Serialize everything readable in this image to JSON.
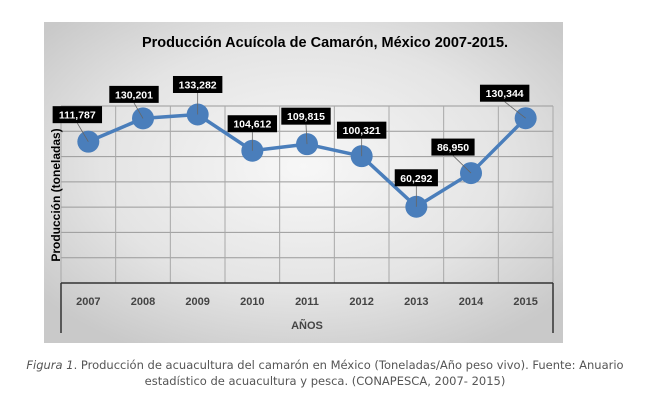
{
  "chart_data": {
    "type": "line",
    "title": "Producción Acuícola de Camarón, México 2007-2015.",
    "xlabel": "AÑOS",
    "ylabel": "Producción (toneladas)",
    "categories": [
      "2007",
      "2008",
      "2009",
      "2010",
      "2011",
      "2012",
      "2013",
      "2014",
      "2015"
    ],
    "values": [
      111787,
      130201,
      133282,
      104612,
      109815,
      100321,
      60292,
      86950,
      130344
    ],
    "data_labels": [
      "111,787",
      "130,201",
      "133,282",
      "104,612",
      "109,815",
      "100,321",
      "60,292",
      "86,950",
      "130,344"
    ],
    "ylim": [
      0,
      140000
    ],
    "ygrid_step": 20000,
    "grid": true,
    "line_color": "#4a7ebb",
    "label_bg": "#000000",
    "label_color": "#ffffff"
  },
  "caption": {
    "figure_label": "Figura 1",
    "line1": ". Producción de acuacultura del camarón en México (Toneladas/Año peso vivo). Fuente: Anuario",
    "line2": "estadístico de acuacultura y pesca. (CONAPESCA, 2007- 2015)"
  }
}
